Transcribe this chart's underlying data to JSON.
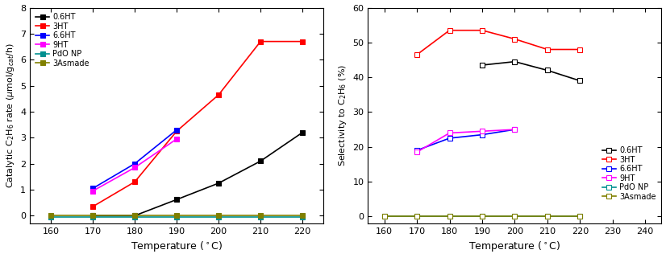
{
  "left_chart": {
    "xlabel": "Temperature ($^\\circ$C)",
    "ylabel": "Catalytic C$_2$H$_6$ rate ($\\mu$mol/g$_{cat}$/h)",
    "xlim": [
      155,
      225
    ],
    "ylim": [
      -0.3,
      8
    ],
    "xticks": [
      160,
      170,
      180,
      190,
      200,
      210,
      220
    ],
    "yticks": [
      0,
      1,
      2,
      3,
      4,
      5,
      6,
      7,
      8
    ],
    "series": [
      {
        "label": "0.6HT",
        "x": [
          170,
          180,
          190,
          200,
          210,
          220
        ],
        "y": [
          0.0,
          0.0,
          0.62,
          1.25,
          2.1,
          3.2
        ],
        "color": "#000000",
        "marker": "s",
        "markerfacecolor": "#000000",
        "markersize": 5
      },
      {
        "label": "3HT",
        "x": [
          170,
          180,
          190,
          200,
          210,
          220
        ],
        "y": [
          0.35,
          1.3,
          3.25,
          4.65,
          6.7,
          6.7
        ],
        "color": "#ff0000",
        "marker": "s",
        "markerfacecolor": "#ff0000",
        "markersize": 5
      },
      {
        "label": "6.6HT",
        "x": [
          170,
          180,
          190
        ],
        "y": [
          1.05,
          2.0,
          3.3
        ],
        "color": "#0000ff",
        "marker": "s",
        "markerfacecolor": "#0000ff",
        "markersize": 5
      },
      {
        "label": "9HT",
        "x": [
          170,
          180,
          190
        ],
        "y": [
          0.95,
          1.85,
          2.95
        ],
        "color": "#ff00ff",
        "marker": "s",
        "markerfacecolor": "#ff00ff",
        "markersize": 5
      },
      {
        "label": "PdO NP",
        "x": [
          160,
          170,
          180,
          190,
          200,
          210,
          220
        ],
        "y": [
          -0.05,
          -0.05,
          -0.05,
          -0.05,
          -0.05,
          -0.05,
          -0.05
        ],
        "color": "#009090",
        "marker": "s",
        "markerfacecolor": "#009090",
        "markersize": 5
      },
      {
        "label": "3Asmade",
        "x": [
          160,
          170,
          180,
          190,
          200,
          210,
          220
        ],
        "y": [
          0.0,
          0.0,
          0.0,
          0.0,
          0.0,
          0.0,
          0.0
        ],
        "color": "#808000",
        "marker": "s",
        "markerfacecolor": "#808000",
        "markersize": 5
      }
    ]
  },
  "right_chart": {
    "xlabel": "Temperature ($^\\circ$C)",
    "ylabel": "Selectivity to C$_2$H$_6$ (%)",
    "xlim": [
      155,
      245
    ],
    "ylim": [
      -2,
      60
    ],
    "xticks": [
      160,
      170,
      180,
      190,
      200,
      210,
      220,
      230,
      240
    ],
    "yticks": [
      0,
      10,
      20,
      30,
      40,
      50,
      60
    ],
    "series": [
      {
        "label": "0.6HT",
        "x": [
          190,
          200,
          210,
          220
        ],
        "y": [
          43.5,
          44.5,
          42.0,
          39.0
        ],
        "color": "#000000",
        "marker": "s",
        "markerfacecolor": "white",
        "markersize": 5
      },
      {
        "label": "3HT",
        "x": [
          170,
          180,
          190,
          200,
          210,
          220
        ],
        "y": [
          46.5,
          53.5,
          53.5,
          51.0,
          48.0,
          48.0
        ],
        "color": "#ff0000",
        "marker": "s",
        "markerfacecolor": "white",
        "markersize": 5
      },
      {
        "label": "6.6HT",
        "x": [
          170,
          180,
          190,
          200
        ],
        "y": [
          19.0,
          22.5,
          23.5,
          25.0
        ],
        "color": "#0000ff",
        "marker": "s",
        "markerfacecolor": "white",
        "markersize": 5
      },
      {
        "label": "9HT",
        "x": [
          170,
          180,
          190,
          200
        ],
        "y": [
          18.5,
          24.0,
          24.5,
          25.0
        ],
        "color": "#ff00ff",
        "marker": "s",
        "markerfacecolor": "white",
        "markersize": 5
      },
      {
        "label": "PdO NP",
        "x": [
          160,
          170,
          180,
          190,
          200,
          210,
          220
        ],
        "y": [
          0.0,
          0.0,
          0.0,
          0.0,
          0.0,
          0.0,
          0.0
        ],
        "color": "#009090",
        "marker": "s",
        "markerfacecolor": "white",
        "markersize": 5
      },
      {
        "label": "3Asmade",
        "x": [
          160,
          170,
          180,
          190,
          200,
          210,
          220
        ],
        "y": [
          0.0,
          0.0,
          0.0,
          0.0,
          0.0,
          0.0,
          0.0
        ],
        "color": "#808000",
        "marker": "s",
        "markerfacecolor": "white",
        "markersize": 5
      }
    ]
  }
}
